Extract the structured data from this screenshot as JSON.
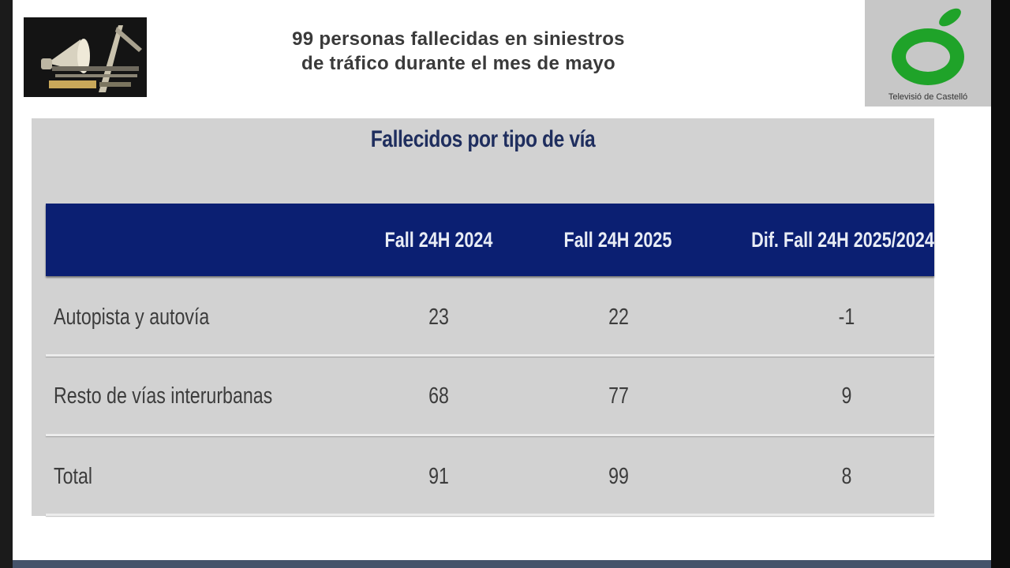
{
  "headline": {
    "line1": "99 personas fallecidas en siniestros",
    "line2": "de tráfico durante el mes de mayo"
  },
  "channel_logo": {
    "caption": "Televisió de Castelló",
    "color": "#1fa329"
  },
  "table": {
    "title": "Fallecidos por tipo de vía",
    "header_color": "#0b1f72",
    "columns": [
      "",
      "Fall 24H 2024",
      "Fall 24H 2025",
      "Dif. Fall 24H 2025/2024"
    ],
    "rows": [
      {
        "label": "Autopista y autovía",
        "v2024": "23",
        "v2025": "22",
        "diff": "-1"
      },
      {
        "label": "Resto de vías interurbanas",
        "v2024": "68",
        "v2025": "77",
        "diff": "9"
      },
      {
        "label": "Total",
        "v2024": "91",
        "v2025": "99",
        "diff": "8"
      }
    ]
  }
}
